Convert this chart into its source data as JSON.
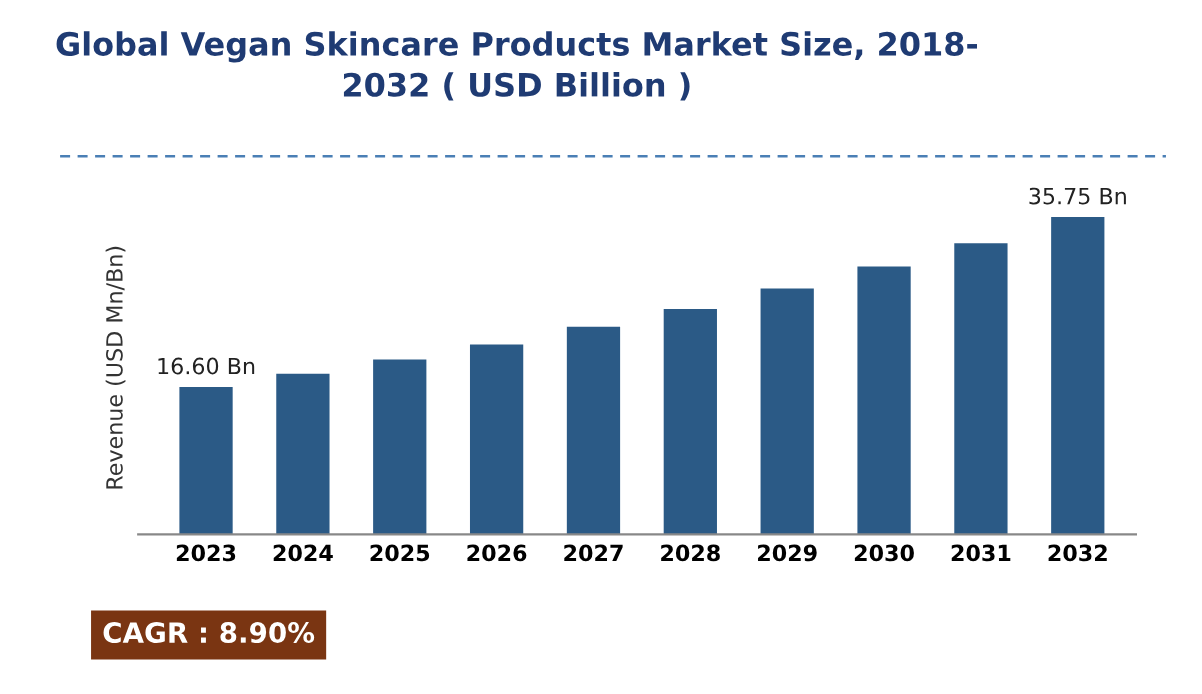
{
  "chart_data": {
    "type": "bar",
    "title": "Global Vegan Skincare Products Market Size, 2018-\n2032 ( USD Billion )",
    "ylabel": "Revenue (USD Mn/Bn)",
    "categories": [
      "2023",
      "2024",
      "2025",
      "2026",
      "2027",
      "2028",
      "2029",
      "2030",
      "2031",
      "2032"
    ],
    "values": [
      16.6,
      18.1,
      19.7,
      21.4,
      23.4,
      25.4,
      27.7,
      30.2,
      32.8,
      35.75
    ],
    "value_labels": [
      "16.60 Bn",
      null,
      null,
      null,
      null,
      null,
      null,
      null,
      null,
      "35.75 Bn"
    ],
    "color": "#2b5a86",
    "annotations": [
      "CAGR : 8.90%"
    ],
    "grid": false,
    "legend": false
  }
}
